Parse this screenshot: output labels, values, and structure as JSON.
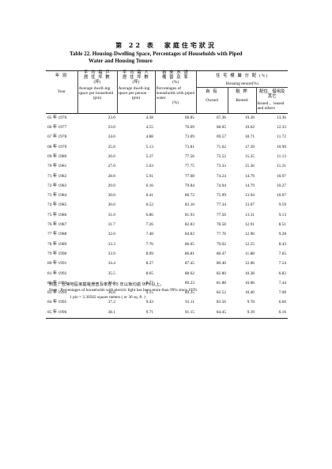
{
  "title": {
    "zh": "第 22 表　家庭住宅狀況",
    "en_line1": "Table 22.   Housing-Dwelling Space, Percentages of Households with Piped",
    "en_line2": "Water and Housing Tenure"
  },
  "headers": {
    "year_zh": "年 別",
    "year_en": "Year",
    "space_hh_zh1": "平 均 每 戶",
    "space_hh_zh2": "居 住 坪 數",
    "space_hh_unit": "(坪)",
    "space_hh_en": "Average dwell-ing space per household",
    "space_hh_en_unit": "(pin)",
    "space_pp_zh1": "平 均 每 人",
    "space_pp_zh2": "居 住 坪 數",
    "space_pp_unit": "(坪)",
    "space_pp_en": "Average dwell-ing space per person",
    "space_pp_en_unit": "(pin)",
    "water_zh1": "自 來 水 設",
    "water_zh2": "備 普 及 率",
    "water_unit": "(%)",
    "water_en": "Percentages of households with piped water",
    "water_en_unit": "(%)",
    "tenure_zh": "住 宅 權 屬 分 配 (%)",
    "tenure_en": "Housing tenure(%)",
    "owned_zh": "自 有",
    "owned_en": "Owned",
    "rented_zh": "租 押",
    "rented_en": "Rented",
    "issued_zh": "配住、借用及其它",
    "issued_en": "Issued 、leased and others"
  },
  "rows": [
    {
      "year": "65 年 1976",
      "hh": "23.0",
      "pp": "4.38",
      "water": "66.85",
      "owned": "67.36",
      "rented": "19.28",
      "issued": "13.36"
    },
    {
      "year": "66 年 1977",
      "hh": "23.0",
      "pp": "4.55",
      "water": "76.69",
      "owned": "68.05",
      "rented": "19.62",
      "issued": "12.33"
    },
    {
      "year": "67 年 1978",
      "hh": "24.0",
      "pp": "4.88",
      "water": "73.09",
      "owned": "69.57",
      "rented": "18.71",
      "issued": "11.72"
    },
    {
      "year": "68 年 1979",
      "hh": "25.0",
      "pp": "5.13",
      "water": "73.81",
      "owned": "71.62",
      "rented": "17.39",
      "issued": "10.99"
    },
    {
      "year": "69 年 1980",
      "hh": "26.0",
      "pp": "5.37",
      "water": "77.56",
      "owned": "73.52",
      "rented": "15.35",
      "issued": "11.13"
    },
    {
      "year": "70 年 1981",
      "hh": "27.0",
      "pp": "5.63",
      "water": "77.75",
      "owned": "73.33",
      "rented": "15.36",
      "issued": "11.31"
    },
    {
      "year": "71 年 1982",
      "hh": "28.0",
      "pp": "5.91",
      "water": "77.08",
      "owned": "74.24",
      "rented": "14.79",
      "issued": "10.97"
    },
    {
      "year": "72 年 1983",
      "hh": "29.0",
      "pp": "6.16",
      "water": "79.84",
      "owned": "74.94",
      "rented": "14.79",
      "issued": "10.27"
    },
    {
      "year": "73 年 1984",
      "hh": "30.0",
      "pp": "6.41",
      "water": "80.72",
      "owned": "75.99",
      "rented": "13.94",
      "issued": "10.07"
    },
    {
      "year": "74 年 1985",
      "hh": "30.0",
      "pp": "6.52",
      "water": "83.10",
      "owned": "77.34",
      "rented": "13.07",
      "issued": "9.59"
    },
    {
      "year": "75 年 1986",
      "hh": "31.0",
      "pp": "6.86",
      "water": "81.93",
      "owned": "77.56",
      "rented": "13.31",
      "issued": "9.13"
    },
    {
      "year": "76 年 1987",
      "hh": "31.7",
      "pp": "7.26",
      "water": "82.83",
      "owned": "78.58",
      "rented": "12.91",
      "issued": "8.51"
    },
    {
      "year": "77 年 1988",
      "hh": "32.0",
      "pp": "7.48",
      "water": "84.83",
      "owned": "77.76",
      "rented": "12.96",
      "issued": "9.28"
    },
    {
      "year": "78 年 1989",
      "hh": "33.3",
      "pp": "7.76",
      "water": "86.05",
      "owned": "79.02",
      "rented": "12.55",
      "issued": "8.43"
    },
    {
      "year": "79 年 1990",
      "hh": "33.9",
      "pp": "8.09",
      "water": "86.81",
      "owned": "80.47",
      "rented": "11.88",
      "issued": "7.65"
    },
    {
      "year": "80 年 1991",
      "hh": "34.4",
      "pp": "8.27",
      "water": "87.45",
      "owned": "80.40",
      "rented": "12.06",
      "issued": "7.54"
    },
    {
      "year": "81 年 1992",
      "hh": "35.5",
      "pp": "8.65",
      "water": "88.62",
      "owned": "82.80",
      "rented": "10.38",
      "issued": "6.82"
    },
    {
      "year": "82 年 1993",
      "hh": "36.0",
      "pp": "8.77",
      "water": "89.23",
      "owned": "81.88",
      "rented": "10.68",
      "issued": "7.44"
    },
    {
      "year": "83 年 1994",
      "hh": "36.8",
      "pp": "9.15",
      "water": "89.35",
      "owned": "82.52",
      "rented": "10.40",
      "issued": "7.08"
    },
    {
      "year": "84 年 1995",
      "hh": "37.2",
      "pp": "9.43",
      "water": "91.11",
      "owned": "83.56",
      "rented": "9.78",
      "issued": "6.66"
    },
    {
      "year": "85 年 1996",
      "hh": "38.1",
      "pp": "9.71",
      "water": "91.15",
      "owned": "84.45",
      "rented": "9.39",
      "issued": "6.16"
    }
  ],
  "notes": {
    "zh": "附註：台灣地區家庭電燈普及率在 65 年以後均逾 99%以上。",
    "en": "Note : Percentages of households with electric light has been more than 99% since 1976.",
    "unit": "1 pin = 3.30582 square meters ( or 36 sq. ft. )"
  }
}
